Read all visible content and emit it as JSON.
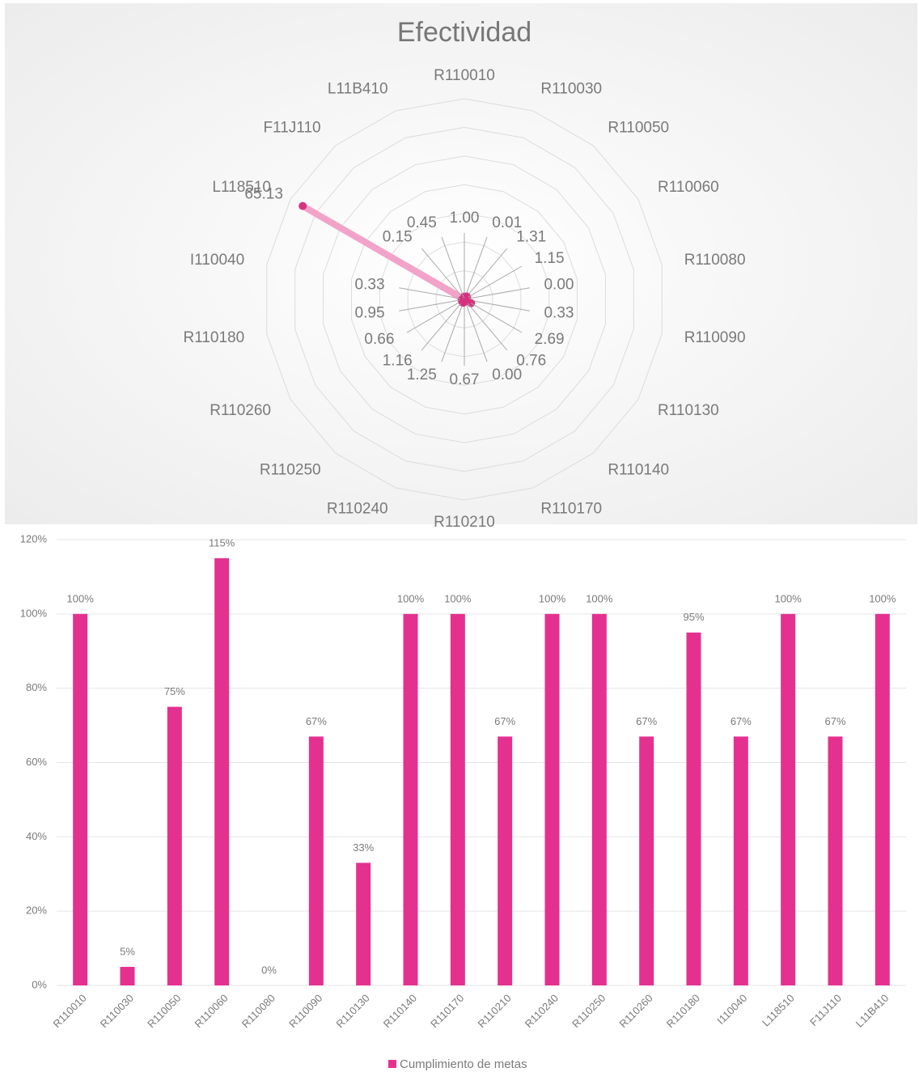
{
  "chart_data": [
    {
      "type": "radar",
      "title": "Efectividad",
      "categories": [
        "R110010",
        "R110030",
        "R110050",
        "R110060",
        "R110080",
        "R110090",
        "R110130",
        "R110140",
        "R110170",
        "R110210",
        "R110240",
        "R110250",
        "R110260",
        "R110180",
        "I110040",
        "L118510",
        "F11J110",
        "L11B410"
      ],
      "values": [
        1,
        0.01,
        1.31,
        1.15,
        0,
        0.33,
        2.69,
        0.76,
        0,
        0.67,
        1.25,
        1.16,
        0.66,
        0.95,
        0.33,
        65.13,
        0.15,
        0.45
      ],
      "value_labels": [
        "1.00",
        "0.01",
        "1.31",
        "1.15",
        "0.00",
        "0.33",
        "2.69",
        "0.76",
        "0.00",
        "0.67",
        "1.25",
        "1.16",
        "0.66",
        "0.95",
        "0.33",
        "65.13",
        "0.15",
        "0.45"
      ],
      "color": "#f2a3c9",
      "marker_color": "#d6337f",
      "rlim": [
        0,
        70
      ],
      "rticks": [
        0,
        10,
        20,
        30,
        40,
        50,
        60,
        70
      ],
      "grid": true
    },
    {
      "type": "bar",
      "categories": [
        "R110010",
        "R110030",
        "R110050",
        "R110060",
        "R110080",
        "R110090",
        "R110130",
        "R110140",
        "R110170",
        "R110210",
        "R110240",
        "R110250",
        "R110260",
        "R110180",
        "I110040",
        "L118510",
        "F11J110",
        "L11B410"
      ],
      "series": [
        {
          "name": "Cumplimiento de metas",
          "color": "#e4318f",
          "values": [
            100,
            5,
            75,
            115,
            0,
            67,
            33,
            100,
            100,
            67,
            100,
            100,
            67,
            95,
            67,
            100,
            67,
            100
          ],
          "value_labels": [
            "100%",
            "5%",
            "75%",
            "115%",
            "0%",
            "67%",
            "33%",
            "100%",
            "100%",
            "67%",
            "100%",
            "100%",
            "67%",
            "95%",
            "67%",
            "100%",
            "67%",
            "100%"
          ]
        }
      ],
      "ylim": [
        0,
        120
      ],
      "yticks": [
        {
          "value": 0,
          "label": "0%"
        },
        {
          "value": 20,
          "label": "20%"
        },
        {
          "value": 40,
          "label": "40%"
        },
        {
          "value": 60,
          "label": "60%"
        },
        {
          "value": 80,
          "label": "80%"
        },
        {
          "value": 100,
          "label": "100%"
        },
        {
          "value": 120,
          "label": "120%"
        }
      ],
      "grid": true,
      "legend": "bottom"
    }
  ]
}
